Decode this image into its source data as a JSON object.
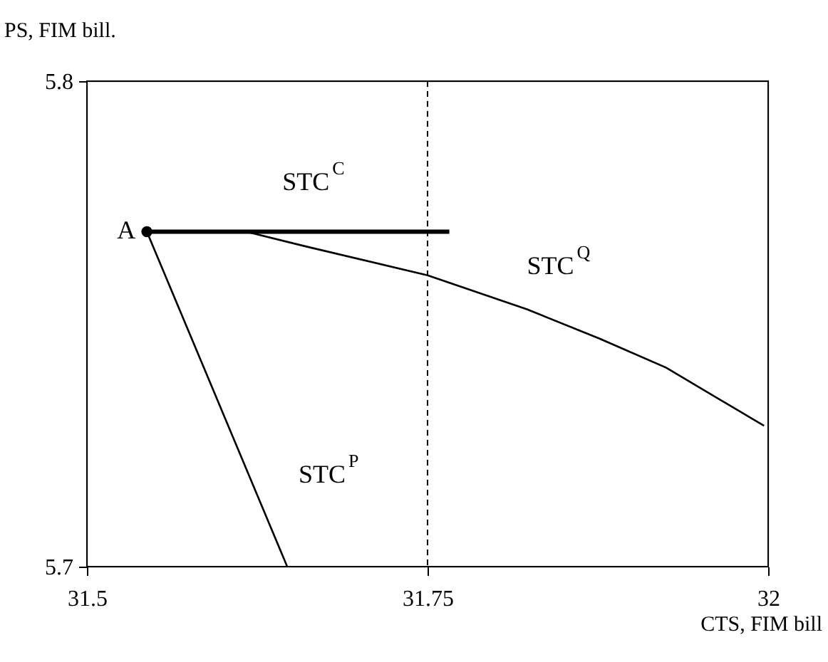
{
  "chart_data": {
    "type": "line",
    "xlabel": "CTS, FIM bill",
    "ylabel": "PS, FIM bill.",
    "xlim": [
      31.5,
      32
    ],
    "xticks": [
      31.5,
      31.75,
      32
    ],
    "ylim": [
      5.7,
      5.8
    ],
    "yticks": [
      5.7,
      5.8
    ],
    "grid": false,
    "series": [
      {
        "name": "STC$^{C}$",
        "color": "#000000",
        "x": [
          31.544,
          31.766
        ],
        "values": [
          5.769,
          5.769
        ]
      },
      {
        "name": "STC$^{P}$",
        "color": "#000000",
        "x": [
          31.544,
          31.647
        ],
        "values": [
          5.769,
          5.7
        ]
      },
      {
        "name": "STC$^{Q}$",
        "color": "#000000",
        "x": [
          31.544,
          31.617,
          31.66,
          31.75,
          31.823,
          31.876,
          31.925,
          31.997
        ],
        "values": [
          5.769,
          5.769,
          5.766,
          5.76,
          5.753,
          5.747,
          5.741,
          5.729
        ]
      },
      {
        "type": "scatter",
        "marker": "circle",
        "color": "#000000",
        "x": [
          31.544
        ],
        "values": [
          5.769
        ]
      }
    ],
    "ref_lines": [
      {
        "axis": "x",
        "value": 31.75,
        "line_style": "dashed",
        "color": "#000000"
      }
    ],
    "annotations": [
      {
        "text": "A",
        "x": 31.544,
        "y": 5.769
      }
    ]
  }
}
